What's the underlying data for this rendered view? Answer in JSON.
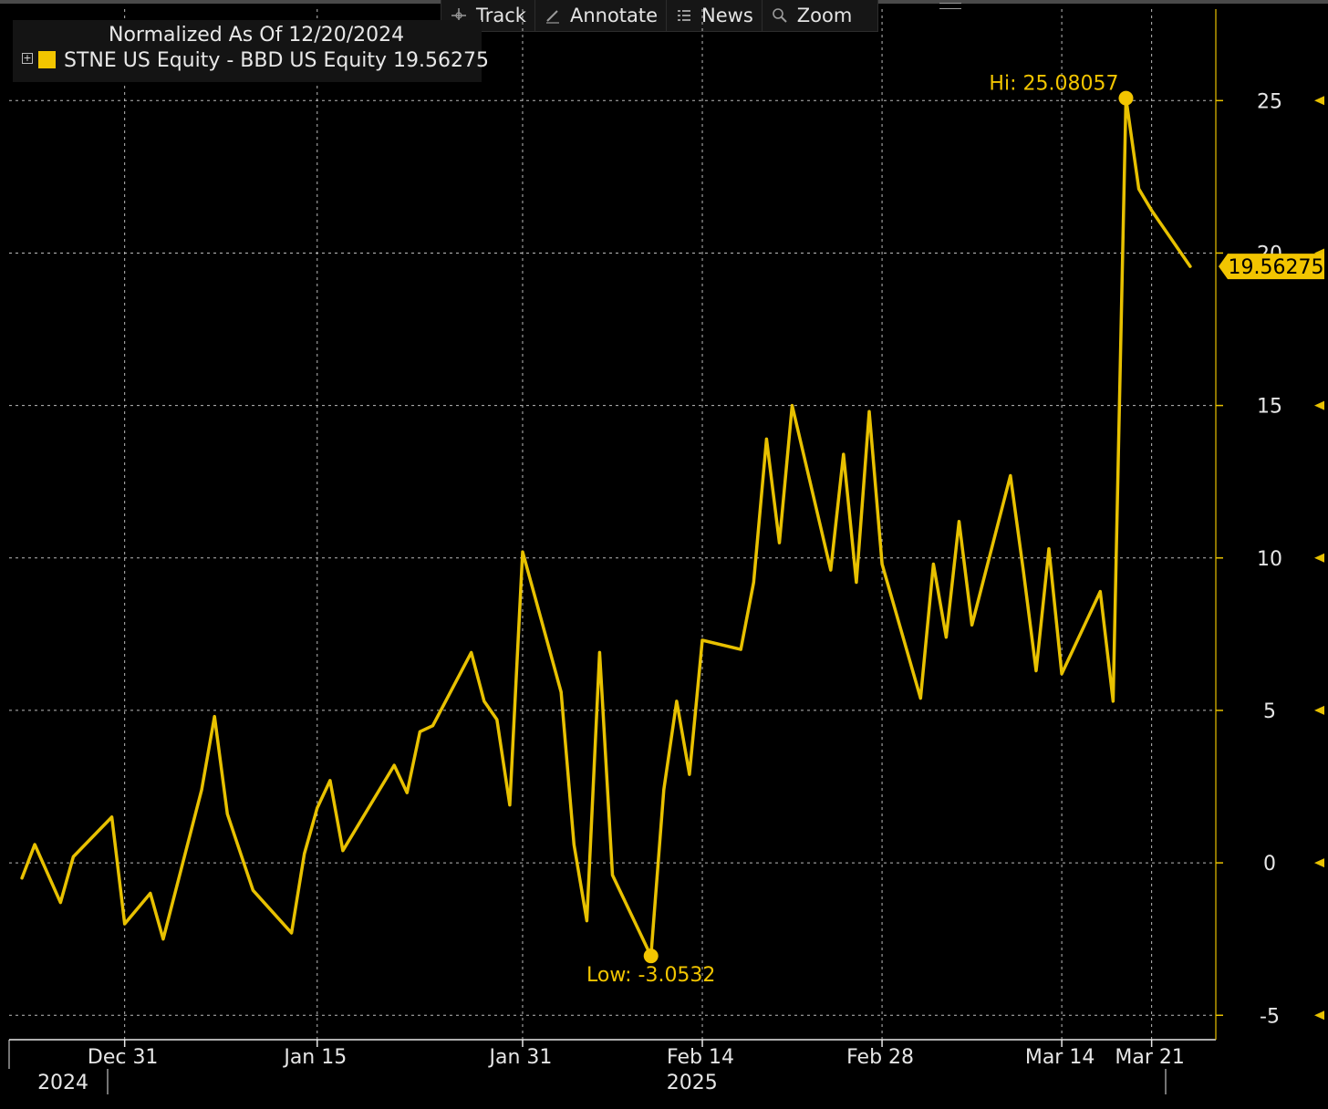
{
  "toolbar": {
    "items": [
      {
        "label": "Track",
        "icon": "crosshair-icon"
      },
      {
        "label": "Annotate",
        "icon": "pencil-icon"
      },
      {
        "label": "News",
        "icon": "news-list-icon"
      },
      {
        "label": "Zoom",
        "icon": "magnifier-icon"
      }
    ]
  },
  "legend": {
    "normalized_text": "Normalized As Of 12/20/2024",
    "toggle_symbol": "+",
    "series_text": "STNE US Equity - BBD US Equity 19.56275",
    "swatch_color": "#f2c500"
  },
  "colors": {
    "background": "#000000",
    "series": "#e8c100",
    "accent": "#f2c500",
    "grid": "#bbbbbb"
  },
  "chart_data": {
    "type": "line",
    "title": "",
    "normalized_as_of": "12/20/2024",
    "series": [
      {
        "name": "STNE US Equity - BBD US Equity",
        "last_value": 19.56275,
        "points": [
          [
            "2024-12-23",
            -0.5
          ],
          [
            "2024-12-24",
            0.6
          ],
          [
            "2024-12-26",
            -1.3
          ],
          [
            "2024-12-27",
            0.2
          ],
          [
            "2024-12-30",
            1.5
          ],
          [
            "2024-12-31",
            -2.0
          ],
          [
            "2025-01-02",
            -1.0
          ],
          [
            "2025-01-03",
            -2.5
          ],
          [
            "2025-01-06",
            2.4
          ],
          [
            "2025-01-07",
            4.8
          ],
          [
            "2025-01-08",
            1.6
          ],
          [
            "2025-01-10",
            -0.9
          ],
          [
            "2025-01-13",
            -2.3
          ],
          [
            "2025-01-14",
            0.3
          ],
          [
            "2025-01-15",
            1.8
          ],
          [
            "2025-01-16",
            2.7
          ],
          [
            "2025-01-17",
            0.4
          ],
          [
            "2025-01-21",
            3.2
          ],
          [
            "2025-01-22",
            2.3
          ],
          [
            "2025-01-23",
            4.3
          ],
          [
            "2025-01-24",
            4.5
          ],
          [
            "2025-01-27",
            6.9
          ],
          [
            "2025-01-28",
            5.3
          ],
          [
            "2025-01-29",
            4.7
          ],
          [
            "2025-01-30",
            1.9
          ],
          [
            "2025-01-31",
            10.2
          ],
          [
            "2025-02-03",
            5.6
          ],
          [
            "2025-02-04",
            0.6
          ],
          [
            "2025-02-05",
            -1.9
          ],
          [
            "2025-02-06",
            6.9
          ],
          [
            "2025-02-07",
            -0.4
          ],
          [
            "2025-02-10",
            -3.0532
          ],
          [
            "2025-02-11",
            2.4
          ],
          [
            "2025-02-12",
            5.3
          ],
          [
            "2025-02-13",
            2.9
          ],
          [
            "2025-02-14",
            7.3
          ],
          [
            "2025-02-17",
            7.0
          ],
          [
            "2025-02-18",
            9.2
          ],
          [
            "2025-02-19",
            13.9
          ],
          [
            "2025-02-20",
            10.5
          ],
          [
            "2025-02-21",
            15.0
          ],
          [
            "2025-02-24",
            9.6
          ],
          [
            "2025-02-25",
            13.4
          ],
          [
            "2025-02-26",
            9.2
          ],
          [
            "2025-02-27",
            14.8
          ],
          [
            "2025-02-28",
            9.8
          ],
          [
            "2025-03-03",
            5.4
          ],
          [
            "2025-03-04",
            9.8
          ],
          [
            "2025-03-05",
            7.4
          ],
          [
            "2025-03-06",
            11.2
          ],
          [
            "2025-03-07",
            7.8
          ],
          [
            "2025-03-10",
            12.7
          ],
          [
            "2025-03-11",
            9.6
          ],
          [
            "2025-03-12",
            6.3
          ],
          [
            "2025-03-13",
            10.3
          ],
          [
            "2025-03-14",
            6.2
          ],
          [
            "2025-03-17",
            8.9
          ],
          [
            "2025-03-18",
            5.3
          ],
          [
            "2025-03-19",
            25.08057
          ],
          [
            "2025-03-20",
            22.1
          ],
          [
            "2025-03-21",
            21.4
          ],
          [
            "2025-03-24",
            19.56275
          ]
        ]
      }
    ],
    "annotations": [
      {
        "label": "Hi: 25.08057",
        "x": "2025-03-19",
        "y": 25.08057
      },
      {
        "label": "Low: -3.0532",
        "x": "2025-02-10",
        "y": -3.0532
      }
    ],
    "y_ticks": [
      {
        "value": 25,
        "label": "25"
      },
      {
        "value": 20,
        "label": "20"
      },
      {
        "value": 15,
        "label": "15"
      },
      {
        "value": 10,
        "label": "10"
      },
      {
        "value": 5,
        "label": "5"
      },
      {
        "value": 0,
        "label": "0"
      },
      {
        "value": -5,
        "label": "-5"
      }
    ],
    "ylim": [
      -5.8,
      28.0
    ],
    "x_range": [
      "2024-12-22",
      "2025-03-26"
    ],
    "x_ticks": [
      {
        "date": "2024-12-31",
        "label": "Dec 31"
      },
      {
        "date": "2025-01-15",
        "label": "Jan 15"
      },
      {
        "date": "2025-01-31",
        "label": "Jan 31"
      },
      {
        "date": "2025-02-14",
        "label": "Feb 14"
      },
      {
        "date": "2025-02-28",
        "label": "Feb 28"
      },
      {
        "date": "2025-03-14",
        "label": "Mar 14"
      },
      {
        "date": "2025-03-21",
        "label": "Mar 21"
      }
    ],
    "year_labels": [
      {
        "date": "2024-12-23",
        "label": "2024"
      },
      {
        "date": "2025-02-10",
        "label": "2025"
      }
    ],
    "last_price_label": "19.56275",
    "grid": true,
    "legend_position": "top-left",
    "y_axis_position": "right"
  }
}
